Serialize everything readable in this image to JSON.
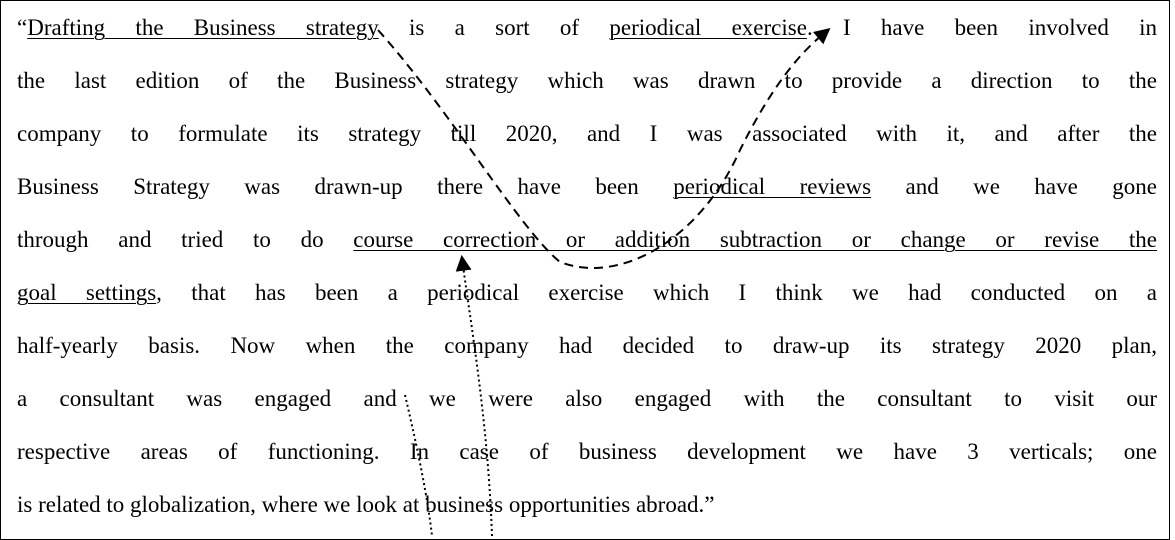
{
  "paragraph": {
    "lines": [
      {
        "segments": [
          {
            "text": "“"
          },
          {
            "text": "Drafting the Business strategy",
            "underline": true
          },
          {
            "text": " is a sort of "
          },
          {
            "text": "periodical exercise",
            "underline": true
          },
          {
            "text": ". I have been involved in"
          }
        ]
      },
      {
        "segments": [
          {
            "text": "the last edition of the Business strategy which was drawn to provide a direction to the"
          }
        ]
      },
      {
        "segments": [
          {
            "text": "company to formulate its strategy till 2020, and I was associated with it, and after the"
          }
        ]
      },
      {
        "segments": [
          {
            "text": "Business Strategy was drawn-up there have been "
          },
          {
            "text": "periodical reviews",
            "underline": true
          },
          {
            "text": " and we have gone"
          }
        ]
      },
      {
        "segments": [
          {
            "text": "through and tried to do "
          },
          {
            "text": "course correction or addition subtraction or change or revise the",
            "underline": true
          }
        ]
      },
      {
        "segments": [
          {
            "text": "goal settings",
            "underline": true
          },
          {
            "text": ", that has been a periodical exercise which I think we had conducted on a"
          }
        ]
      },
      {
        "segments": [
          {
            "text": "half-yearly basis. Now when the company had decided to draw-up its strategy 2020 plan,"
          }
        ]
      },
      {
        "segments": [
          {
            "text": "a consultant was engaged and we were also engaged with the consultant to visit our"
          }
        ]
      },
      {
        "segments": [
          {
            "text": "respective areas of functioning. In case of business development we have 3 verticals; one"
          }
        ]
      },
      {
        "segments": [
          {
            "text": "is related to globalization, where we look at business opportunities abroad.”"
          }
        ]
      }
    ]
  }
}
